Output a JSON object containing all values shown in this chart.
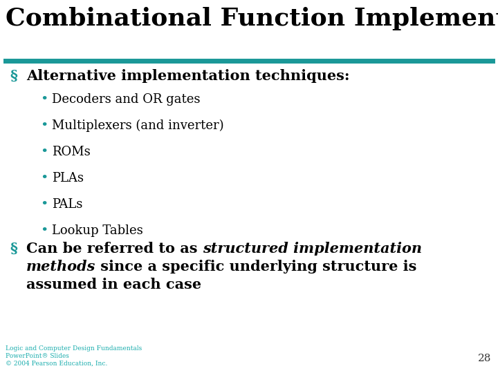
{
  "title": "Combinational Function Implementation",
  "title_fontsize": 26,
  "title_color": "#000000",
  "bg_color": "#ffffff",
  "line_color": "#1a9898",
  "bullet_color": "#1a9898",
  "bullet1_text": "Alternative implementation techniques:",
  "bullet1_fontsize": 15,
  "subbullets": [
    "Decoders and OR gates",
    "Multiplexers (and inverter)",
    "ROMs",
    "PLAs",
    "PALs",
    "Lookup Tables"
  ],
  "subbullet_fontsize": 13,
  "bullet2_plain1": "Can be referred to as ",
  "bullet2_italic": "structured implementation",
  "bullet2_italic2": "methods",
  "bullet2_plain2": " since a specific underlying structure is",
  "bullet2_plain3": "assumed in each case",
  "bullet2_fontsize": 15,
  "footer_line1": "Logic and Computer Design Fundamentals",
  "footer_line2": "PowerPoint® Slides",
  "footer_line3": "© 2004 Pearson Education, Inc.",
  "footer_color": "#1aadad",
  "footer_fontsize": 6.5,
  "page_number": "28",
  "page_number_fontsize": 11,
  "page_number_color": "#333333"
}
